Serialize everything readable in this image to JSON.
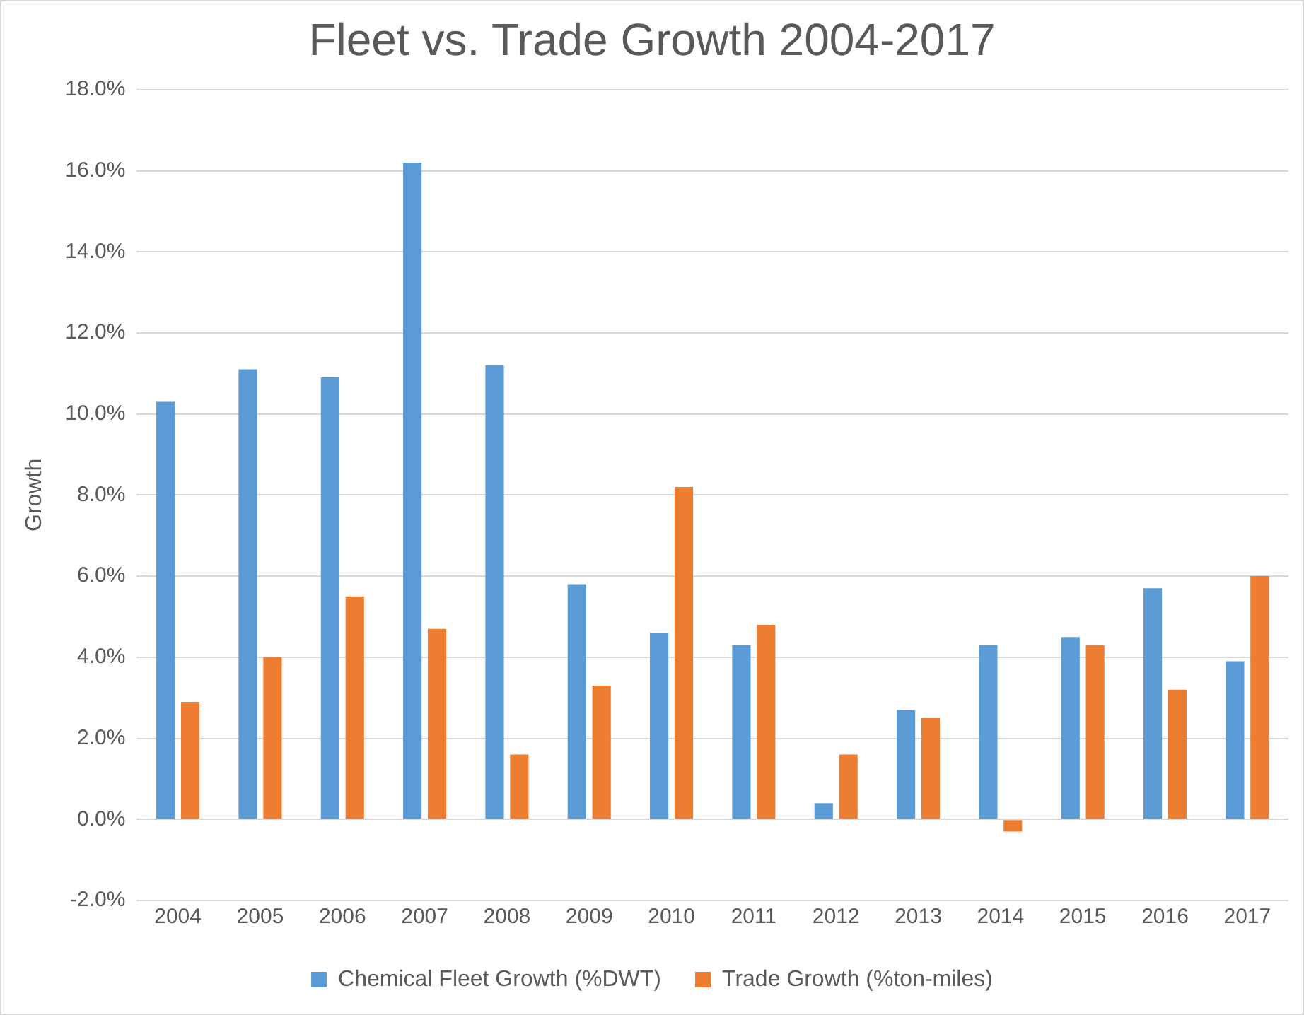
{
  "chart_data": {
    "type": "bar",
    "title": "Fleet vs. Trade Growth 2004-2017",
    "ylabel": "Growth",
    "categories": [
      "2004",
      "2005",
      "2006",
      "2007",
      "2008",
      "2009",
      "2010",
      "2011",
      "2012",
      "2013",
      "2014",
      "2015",
      "2016",
      "2017"
    ],
    "series": [
      {
        "name": "Chemical Fleet Growth (%DWT)",
        "color": "#5b9bd5",
        "values": [
          10.3,
          11.1,
          10.9,
          16.2,
          11.2,
          5.8,
          4.6,
          4.3,
          0.4,
          2.7,
          4.3,
          4.5,
          5.7,
          3.9
        ]
      },
      {
        "name": "Trade Growth (%ton-miles)",
        "color": "#ed7d31",
        "values": [
          2.9,
          4.0,
          5.5,
          4.7,
          1.6,
          3.3,
          8.2,
          4.8,
          1.6,
          2.5,
          -0.3,
          4.3,
          3.2,
          6.0
        ]
      }
    ],
    "ylim": [
      -2,
      18
    ],
    "yticks": [
      {
        "value": -2,
        "label": "-2.0%"
      },
      {
        "value": 0,
        "label": "0.0%"
      },
      {
        "value": 2,
        "label": "2.0%"
      },
      {
        "value": 4,
        "label": "4.0%"
      },
      {
        "value": 6,
        "label": "6.0%"
      },
      {
        "value": 8,
        "label": "8.0%"
      },
      {
        "value": 10,
        "label": "10.0%"
      },
      {
        "value": 12,
        "label": "12.0%"
      },
      {
        "value": 14,
        "label": "14.0%"
      },
      {
        "value": 16,
        "label": "16.0%"
      },
      {
        "value": 18,
        "label": "18.0%"
      }
    ],
    "grid": "y",
    "legend": "bottom"
  }
}
